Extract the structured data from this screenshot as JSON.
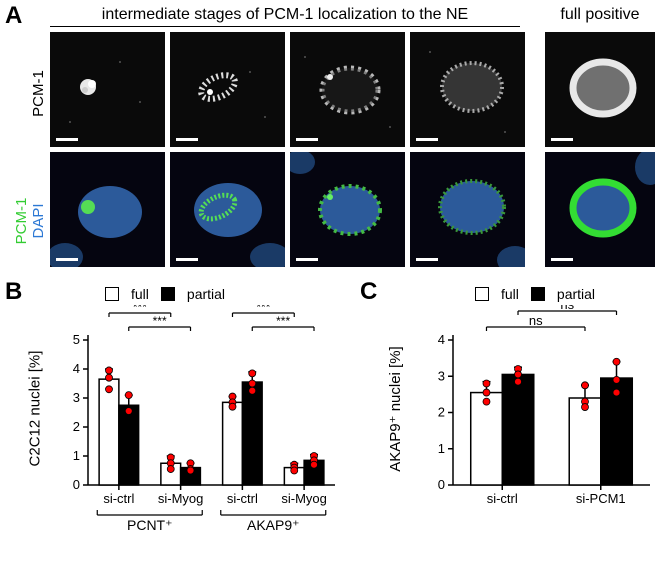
{
  "panelA": {
    "letter": "A",
    "header_intermediate": "intermediate stages of PCM-1 localization to the NE",
    "header_full": "full positive",
    "row_labels": {
      "top": "PCM-1",
      "bottom_pcm1": "PCM-1",
      "bottom_dapi": "DAPI"
    },
    "colors": {
      "pcm1_green": "#33cc33",
      "dapi_blue": "#2c78d4"
    }
  },
  "panelB": {
    "letter": "B",
    "ylabel": "C2C12 nuclei [%]",
    "ylim": [
      0,
      5
    ],
    "yticks": [
      0,
      1,
      2,
      3,
      4,
      5
    ],
    "legend": {
      "full": "full",
      "partial": "partial"
    },
    "groups": [
      {
        "label": "si-ctrl",
        "full": 3.65,
        "partial": 2.75,
        "full_err": 0.35,
        "partial_err": 0.35,
        "full_pts": [
          3.95,
          3.7,
          3.3
        ],
        "partial_pts": [
          3.1,
          2.55,
          2.55
        ]
      },
      {
        "label": "si-Myog",
        "full": 0.75,
        "partial": 0.6,
        "full_err": 0.25,
        "partial_err": 0.15,
        "full_pts": [
          0.95,
          0.75,
          0.55
        ],
        "partial_pts": [
          0.75,
          0.55,
          0.5
        ]
      },
      {
        "label": "si-ctrl",
        "full": 2.85,
        "partial": 3.55,
        "full_err": 0.2,
        "partial_err": 0.35,
        "full_pts": [
          3.05,
          2.85,
          2.7
        ],
        "partial_pts": [
          3.85,
          3.5,
          3.25
        ]
      },
      {
        "label": "si-Myog",
        "full": 0.6,
        "partial": 0.85,
        "full_err": 0.15,
        "partial_err": 0.2,
        "full_pts": [
          0.7,
          0.6,
          0.5
        ],
        "partial_pts": [
          1.0,
          0.85,
          0.7
        ]
      }
    ],
    "superlabels": [
      "PCNT⁺",
      "AKAP9⁺"
    ],
    "sig": [
      "***",
      "***",
      "***",
      "***"
    ],
    "colors": {
      "full": "#ffffff",
      "partial": "#000000",
      "point": "#ff0000",
      "bar_stroke": "#000000"
    }
  },
  "panelC": {
    "letter": "C",
    "ylabel": "AKAP9⁺ nuclei [%]",
    "ylim": [
      0,
      4
    ],
    "yticks": [
      0,
      1,
      2,
      3,
      4
    ],
    "legend": {
      "full": "full",
      "partial": "partial"
    },
    "groups": [
      {
        "label": "si-ctrl",
        "full": 2.55,
        "partial": 3.05,
        "full_err": 0.3,
        "partial_err": 0.2,
        "full_pts": [
          2.8,
          2.55,
          2.3
        ],
        "partial_pts": [
          3.2,
          3.05,
          2.85
        ]
      },
      {
        "label": "si-PCM1",
        "full": 2.4,
        "partial": 2.95,
        "full_err": 0.35,
        "partial_err": 0.45,
        "full_pts": [
          2.75,
          2.3,
          2.15
        ],
        "partial_pts": [
          3.4,
          2.9,
          2.55
        ]
      }
    ],
    "sig": [
      "ns",
      "ns"
    ],
    "colors": {
      "full": "#ffffff",
      "partial": "#000000",
      "point": "#ff0000",
      "bar_stroke": "#000000"
    }
  }
}
